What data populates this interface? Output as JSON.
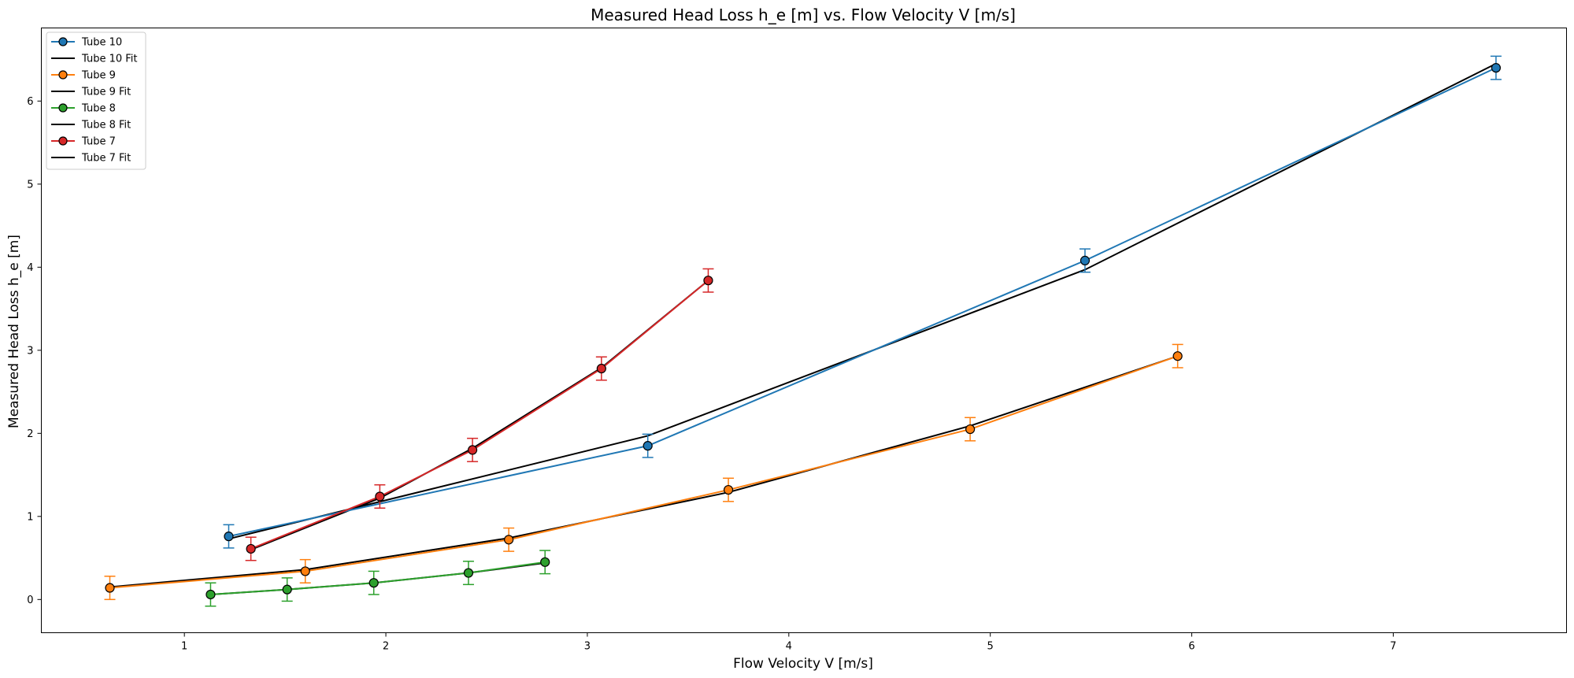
{
  "chart_data": {
    "type": "line",
    "title": "Measured Head Loss h_e [m] vs. Flow Velocity V [m/s]",
    "xlabel": "Flow Velocity V [m/s]",
    "ylabel": "Measured Head Loss h_e [m]",
    "xlim": [
      0.29,
      7.86
    ],
    "ylim": [
      -0.4,
      6.88
    ],
    "xticks": [
      1,
      2,
      3,
      4,
      5,
      6,
      7
    ],
    "yticks": [
      0,
      1,
      2,
      3,
      4,
      5,
      6
    ],
    "grid": false,
    "legend_position": "top-left",
    "error_bar": 0.14,
    "series": [
      {
        "name": "Tube 10",
        "fit_name": "Tube 10 Fit",
        "color": "#1f77b4",
        "x": [
          1.22,
          3.3,
          5.47,
          7.51
        ],
        "y": [
          0.76,
          1.85,
          4.08,
          6.4
        ],
        "fit": [
          0.73,
          1.97,
          3.97,
          6.45
        ]
      },
      {
        "name": "Tube 9",
        "fit_name": "Tube 9 Fit",
        "color": "#ff7f0e",
        "x": [
          0.63,
          1.6,
          2.61,
          3.7,
          4.9,
          5.93
        ],
        "y": [
          0.14,
          0.34,
          0.72,
          1.32,
          2.05,
          2.93
        ],
        "fit": [
          0.15,
          0.36,
          0.74,
          1.29,
          2.09,
          2.93
        ]
      },
      {
        "name": "Tube 8",
        "fit_name": "Tube 8 Fit",
        "color": "#2ca02c",
        "x": [
          1.13,
          1.51,
          1.94,
          2.41,
          2.79
        ],
        "y": [
          0.06,
          0.12,
          0.2,
          0.32,
          0.45
        ],
        "fit": [
          0.06,
          0.12,
          0.2,
          0.32,
          0.44
        ]
      },
      {
        "name": "Tube 7",
        "fit_name": "Tube 7 Fit",
        "color": "#d62728",
        "x": [
          1.33,
          1.97,
          2.43,
          3.07,
          3.6
        ],
        "y": [
          0.61,
          1.24,
          1.8,
          2.78,
          3.84
        ],
        "fit": [
          0.6,
          1.22,
          1.82,
          2.79,
          3.84
        ]
      }
    ]
  }
}
